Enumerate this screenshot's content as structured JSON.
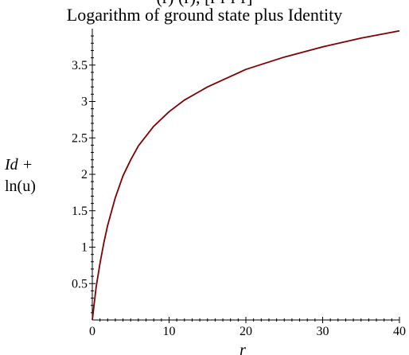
{
  "chart_data": {
    "type": "line",
    "title": "Logarithm of ground state plus Identity",
    "top_cut_text": "(r)  (r),  [r    r   r              r]",
    "xlabel": "r",
    "ylabel_line1": "Id +",
    "ylabel_line2": "ln(u)",
    "xlim": [
      0,
      40
    ],
    "ylim": [
      0,
      4.0
    ],
    "x_ticks": [
      0,
      10,
      20,
      30,
      40
    ],
    "x_tick_labels": [
      "0",
      "10",
      "20",
      "30",
      "40"
    ],
    "y_ticks": [
      0.5,
      1,
      1.5,
      2,
      2.5,
      3,
      3.5
    ],
    "y_tick_labels": [
      "0.5",
      "1",
      "1.5",
      "2",
      "2.5",
      "3",
      "3.5"
    ],
    "grid": false,
    "series": [
      {
        "color": "#800000",
        "x": [
          0,
          0.5,
          1,
          1.5,
          2,
          3,
          4,
          5,
          6,
          8,
          10,
          12,
          15,
          20,
          25,
          30,
          35,
          40
        ],
        "y": [
          0,
          0.45,
          0.78,
          1.06,
          1.3,
          1.68,
          1.98,
          2.2,
          2.39,
          2.66,
          2.86,
          3.02,
          3.2,
          3.44,
          3.61,
          3.75,
          3.87,
          3.97
        ]
      }
    ]
  }
}
